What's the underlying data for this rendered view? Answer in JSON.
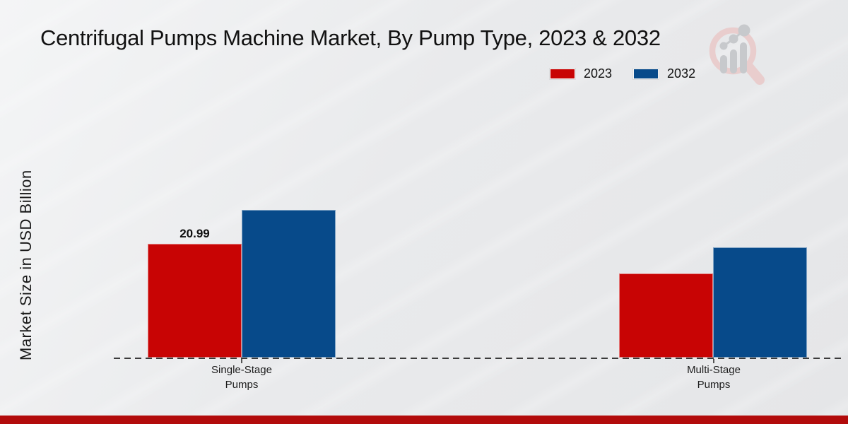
{
  "title": "Centrifugal Pumps Machine Market, By Pump Type, 2023 & 2032",
  "y_axis_label": "Market Size in USD Billion",
  "legend": {
    "items": [
      {
        "label": "2023",
        "color": "#c80404"
      },
      {
        "label": "2032",
        "color": "#074a8a"
      }
    ]
  },
  "chart_data": {
    "type": "bar",
    "title": "Centrifugal Pumps Machine Market, By Pump Type, 2023 & 2032",
    "xlabel": "",
    "ylabel": "Market Size in USD Billion",
    "categories": [
      "Single-Stage Pumps",
      "Multi-Stage Pumps"
    ],
    "series": [
      {
        "name": "2023",
        "color": "#c80404",
        "values": [
          20.99,
          15.5
        ]
      },
      {
        "name": "2032",
        "color": "#074a8a",
        "values": [
          27.3,
          20.3
        ]
      }
    ],
    "data_label": {
      "text": "20.99",
      "series": "2023",
      "category": "Single-Stage Pumps"
    },
    "ylim": [
      0,
      30
    ],
    "grid": false,
    "legend_position": "top-right",
    "baseline_style": "dashed"
  },
  "branding": {
    "watermark_icon": "bar-chart-magnifier-logo",
    "footer_bar_color": "#b20b0b"
  }
}
